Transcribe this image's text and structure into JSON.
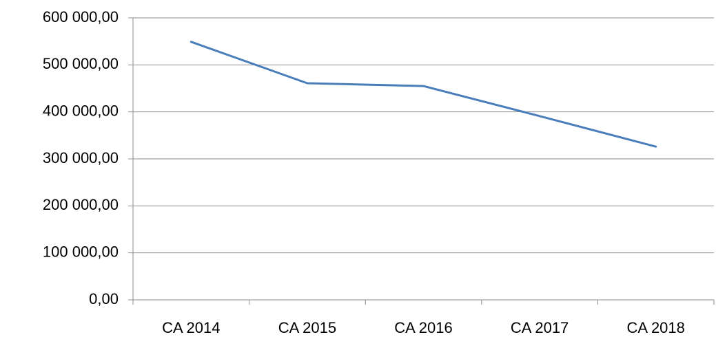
{
  "chart_data": {
    "type": "line",
    "categories": [
      "CA 2014",
      "CA 2015",
      "CA 2016",
      "CA 2017",
      "CA 2018"
    ],
    "series": [
      {
        "color": "#4a7ebb",
        "values": [
          549000,
          461000,
          455000,
          391000,
          326000
        ]
      }
    ],
    "ylim": [
      0,
      600000
    ],
    "yticks": [
      {
        "value": 0,
        "label": "0,00"
      },
      {
        "value": 100000,
        "label": "100 000,00"
      },
      {
        "value": 200000,
        "label": "200 000,00"
      },
      {
        "value": 300000,
        "label": "300 000,00"
      },
      {
        "value": 400000,
        "label": "400 000,00"
      },
      {
        "value": 500000,
        "label": "500 000,00"
      },
      {
        "value": 600000,
        "label": "600 000,00"
      }
    ],
    "grid": true
  }
}
